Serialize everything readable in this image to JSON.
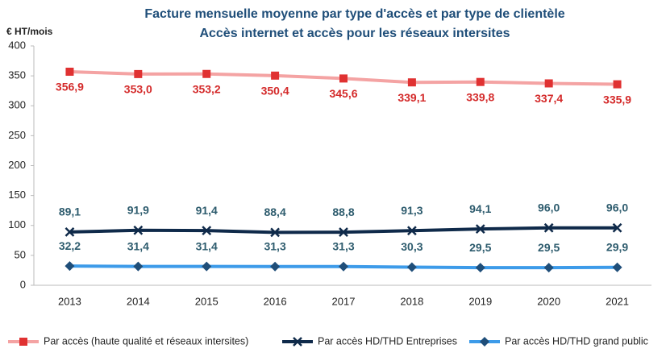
{
  "chart_data": {
    "type": "line",
    "title": "Facture mensuelle moyenne par type d'accès et par type de clientèle",
    "subtitle": "Accès internet et accès pour les réseaux intersites",
    "y_label": "€ HT/mois",
    "categories": [
      "2013",
      "2014",
      "2015",
      "2016",
      "2017",
      "2018",
      "2019",
      "2020",
      "2021"
    ],
    "ylim": [
      0,
      400
    ],
    "yticks": [
      0,
      50,
      100,
      150,
      200,
      250,
      300,
      350,
      400
    ],
    "grid": false,
    "legend": "bottom",
    "series": [
      {
        "name": "Par accès (haute qualité et réseaux intersites)",
        "color": "#f4a3a3",
        "marker": "square",
        "marker_color": "#e03131",
        "label_color": "#d42a2a",
        "values": [
          356.9,
          353.0,
          353.2,
          350.4,
          345.6,
          339.1,
          339.8,
          337.4,
          335.9
        ],
        "value_labels": [
          "356,9",
          "353,0",
          "353,2",
          "350,4",
          "345,6",
          "339,1",
          "339,8",
          "337,4",
          "335,9"
        ]
      },
      {
        "name": "Par accès HD/THD Entreprises",
        "color": "#0f2a4a",
        "marker": "x",
        "marker_color": "#0f2a4a",
        "label_color": "#2e5c6e",
        "values": [
          89.1,
          91.9,
          91.4,
          88.4,
          88.8,
          91.3,
          94.1,
          96.0,
          96.0
        ],
        "value_labels": [
          "89,1",
          "91,9",
          "91,4",
          "88,4",
          "88,8",
          "91,3",
          "94,1",
          "96,0",
          "96,0"
        ]
      },
      {
        "name": "Par accès HD/THD grand public",
        "color": "#3d9be9",
        "marker": "diamond",
        "marker_color": "#1f4e79",
        "label_color": "#2e5c6e",
        "values": [
          32.2,
          31.4,
          31.4,
          31.3,
          31.3,
          30.3,
          29.5,
          29.5,
          29.9
        ],
        "value_labels": [
          "32,2",
          "31,4",
          "31,4",
          "31,3",
          "31,3",
          "30,3",
          "29,5",
          "29,5",
          "29,9"
        ]
      }
    ]
  }
}
